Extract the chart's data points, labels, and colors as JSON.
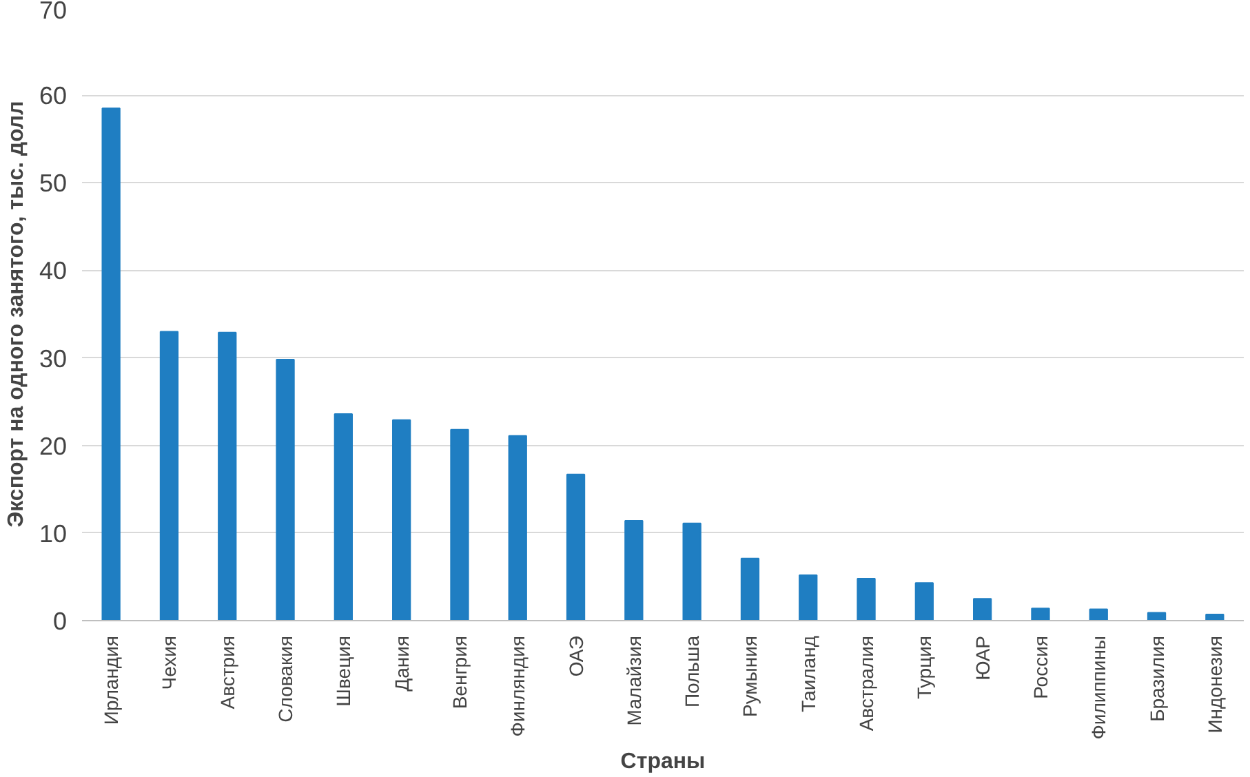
{
  "chart_data": {
    "type": "bar",
    "xlabel": "Страны",
    "ylabel": "Экспорт на одного занятого, тыс. долл",
    "categories": [
      "Ирландия",
      "Чехия",
      "Австрия",
      "Словакия",
      "Швеция",
      "Дания",
      "Венгрия",
      "Финляндия",
      "ОАЭ",
      "Малайзия",
      "Польша",
      "Румыния",
      "Таиланд",
      "Австралия",
      "Турция",
      "ЮАР",
      "Россия",
      "Филиппины",
      "Бразилия",
      "Индонезия"
    ],
    "values": [
      58.5,
      33.0,
      32.9,
      29.8,
      23.6,
      22.9,
      21.8,
      21.1,
      16.7,
      11.4,
      11.1,
      7.1,
      5.2,
      4.8,
      4.3,
      2.5,
      1.4,
      1.3,
      0.9,
      0.7
    ],
    "color": "#1f7ec2",
    "ylim": [
      0,
      70
    ],
    "yticks": [
      0,
      10,
      20,
      30,
      40,
      50,
      60,
      70
    ],
    "grid": "y"
  }
}
